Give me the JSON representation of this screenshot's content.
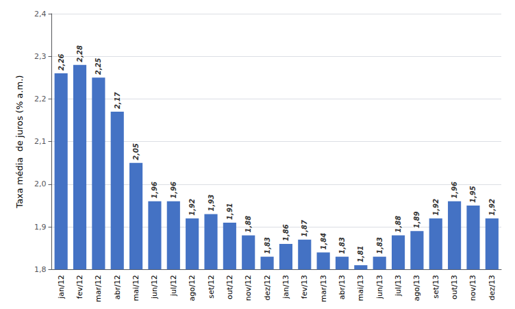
{
  "chart_data": {
    "type": "bar",
    "ylabel": "Taxa média  de juros (% a.m.)",
    "categories": [
      "jan/12",
      "fev/12",
      "mar/12",
      "abr/12",
      "mai/12",
      "jun/12",
      "jul/12",
      "ago/12",
      "set/12",
      "out/12",
      "nov/12",
      "dez/12",
      "jan/13",
      "fev/13",
      "mar/13",
      "abr/13",
      "mai/13",
      "jun/13",
      "jul/13",
      "ago/13",
      "set/13",
      "out/13",
      "nov/13",
      "dez/13"
    ],
    "values": [
      2.26,
      2.28,
      2.25,
      2.17,
      2.05,
      1.96,
      1.96,
      1.92,
      1.93,
      1.91,
      1.88,
      1.83,
      1.86,
      1.87,
      1.84,
      1.83,
      1.81,
      1.83,
      1.88,
      1.89,
      1.92,
      1.96,
      1.95,
      1.92
    ],
    "value_labels": [
      "2,26",
      "2,28",
      "2,25",
      "2,17",
      "2,05",
      "1,96",
      "1,96",
      "1,92",
      "1,93",
      "1,91",
      "1,88",
      "1,83",
      "1,86",
      "1,87",
      "1,84",
      "1,83",
      "1,81",
      "1,83",
      "1,88",
      "1,89",
      "1,92",
      "1,96",
      "1,95",
      "1,92"
    ],
    "color": "#4472C4",
    "ylim": [
      1.8,
      2.4
    ],
    "yticks": [
      {
        "value": 1.8,
        "label": "1,8"
      },
      {
        "value": 1.9,
        "label": "1,9"
      },
      {
        "value": 2.0,
        "label": "2,0"
      },
      {
        "value": 2.1,
        "label": "2,1"
      },
      {
        "value": 2.2,
        "label": "2,2"
      },
      {
        "value": 2.3,
        "label": "2,3"
      },
      {
        "value": 2.4,
        "label": "2,4"
      }
    ],
    "grid": true,
    "data_labels": true
  }
}
